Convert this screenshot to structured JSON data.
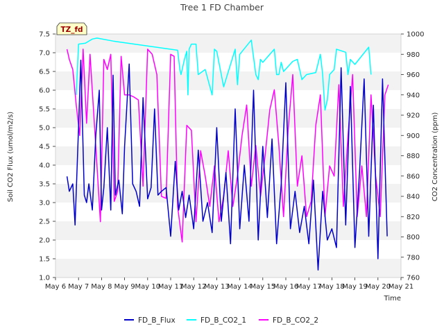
{
  "chart_data": {
    "type": "line",
    "title": "Tree 1 FD Chamber",
    "xlabel": "Time",
    "ylabel_left": "Soil CO2 Flux (umol/m2/s)",
    "ylabel_right": "CO2 Concentration (ppm)",
    "badge": "TZ_fd",
    "x_ticks": [
      "May 6",
      "May 7",
      "May 8",
      "May 9",
      "May 10",
      "May 11",
      "May 12",
      "May 13",
      "May 14",
      "May 15",
      "May 16",
      "May 17",
      "May 18",
      "May 19",
      "May 20",
      "May 21"
    ],
    "xlim": [
      6,
      21
    ],
    "ylim_left": [
      1.0,
      7.5
    ],
    "ylim_right": [
      760,
      1000
    ],
    "y_ticks_left": [
      "1.0",
      "1.5",
      "2.0",
      "2.5",
      "3.0",
      "3.5",
      "4.0",
      "4.5",
      "5.0",
      "5.5",
      "6.0",
      "6.5",
      "7.0",
      "7.5"
    ],
    "y_ticks_right": [
      "760",
      "780",
      "800",
      "820",
      "840",
      "860",
      "880",
      "900",
      "920",
      "940",
      "960",
      "980",
      "1000"
    ],
    "grid": "horizontal bands",
    "legend_position": "bottom-center",
    "series": [
      {
        "name": "FD_B_Flux",
        "axis": "left",
        "color": "#0000cc",
        "x": [
          6.5,
          6.6,
          6.75,
          6.85,
          7.0,
          7.1,
          7.25,
          7.35,
          7.45,
          7.6,
          7.75,
          7.9,
          8.0,
          8.1,
          8.25,
          8.4,
          8.5,
          8.6,
          8.75,
          8.9,
          9.0,
          9.2,
          9.35,
          9.5,
          9.65,
          9.8,
          10.0,
          10.15,
          10.3,
          10.45,
          10.6,
          10.8,
          11.0,
          11.2,
          11.35,
          11.5,
          11.65,
          11.8,
          12.0,
          12.2,
          12.4,
          12.6,
          12.8,
          13.0,
          13.2,
          13.4,
          13.6,
          13.8,
          14.0,
          14.2,
          14.4,
          14.6,
          14.8,
          15.0,
          15.2,
          15.4,
          15.6,
          15.8,
          16.0,
          16.2,
          16.4,
          16.6,
          16.8,
          17.0,
          17.2,
          17.4,
          17.6,
          17.8,
          18.0,
          18.2,
          18.4,
          18.6,
          18.8,
          19.0,
          19.2,
          19.4,
          19.6,
          19.8,
          20.0,
          20.2,
          20.4
        ],
        "values": [
          3.7,
          3.3,
          3.5,
          2.4,
          5.0,
          6.8,
          3.2,
          3.0,
          3.5,
          2.8,
          4.8,
          6.0,
          2.8,
          3.4,
          5.0,
          2.8,
          6.4,
          3.2,
          3.6,
          2.7,
          4.5,
          6.7,
          3.5,
          3.3,
          2.9,
          5.8,
          3.1,
          3.4,
          5.5,
          3.2,
          3.3,
          3.4,
          2.1,
          4.1,
          2.8,
          3.3,
          2.6,
          3.2,
          2.3,
          4.4,
          2.5,
          3.0,
          2.2,
          5.0,
          2.5,
          3.8,
          1.9,
          5.5,
          2.3,
          4.0,
          2.5,
          6.0,
          2.0,
          4.5,
          2.6,
          4.7,
          1.9,
          3.5,
          6.2,
          2.3,
          3.3,
          2.2,
          2.9,
          1.9,
          3.6,
          1.2,
          3.3,
          2.0,
          2.3,
          1.8,
          6.6,
          2.4,
          6.1,
          1.8,
          3.8,
          6.3,
          2.1,
          5.6,
          1.5,
          6.3,
          2.1
        ]
      },
      {
        "name": "FD_B_CO2_1",
        "axis": "right",
        "color": "#00ffff",
        "x": [
          6.9,
          7.0,
          7.3,
          7.6,
          7.8,
          8.5,
          11.3,
          11.4,
          11.45,
          11.6,
          11.7,
          11.75,
          11.8,
          11.9,
          12.1,
          12.2,
          12.5,
          12.8,
          12.9,
          13.0,
          13.3,
          13.6,
          13.8,
          13.9,
          14.0,
          14.5,
          14.7,
          14.8,
          14.9,
          15.0,
          15.5,
          15.6,
          15.7,
          15.8,
          15.9,
          16.3,
          16.5,
          16.7,
          16.9,
          17.3,
          17.5,
          17.6,
          17.7,
          17.8,
          17.9,
          18.1,
          18.2,
          18.6,
          18.7,
          18.8,
          19.0,
          19.6,
          19.7
        ],
        "values": [
          940,
          990,
          991,
          995,
          996,
          993,
          984,
          965,
          960,
          975,
          983,
          940,
          985,
          990,
          990,
          960,
          965,
          940,
          985,
          983,
          948,
          970,
          985,
          950,
          980,
          994,
          960,
          955,
          975,
          972,
          985,
          960,
          960,
          972,
          963,
          973,
          975,
          955,
          960,
          962,
          980,
          960,
          925,
          935,
          960,
          965,
          985,
          982,
          960,
          975,
          970,
          987,
          960
        ]
      },
      {
        "name": "FD_B_CO2_2",
        "axis": "right",
        "color": "#ff00ff",
        "x": [
          6.5,
          6.6,
          6.75,
          6.9,
          7.05,
          7.2,
          7.35,
          7.5,
          7.65,
          7.8,
          7.95,
          8.1,
          8.25,
          8.4,
          8.55,
          8.7,
          8.85,
          9.0,
          9.2,
          9.4,
          9.6,
          9.8,
          10.0,
          10.2,
          10.4,
          10.6,
          10.8,
          11.0,
          11.15,
          11.3,
          11.5,
          11.7,
          11.9,
          12.1,
          12.3,
          12.5,
          12.7,
          12.9,
          13.1,
          13.3,
          13.5,
          13.7,
          13.9,
          14.1,
          14.3,
          14.5,
          14.7,
          14.9,
          15.1,
          15.3,
          15.5,
          15.7,
          15.9,
          16.1,
          16.3,
          16.5,
          16.7,
          16.9,
          17.1,
          17.3,
          17.5,
          17.7,
          17.9,
          18.1,
          18.3,
          18.5,
          18.7,
          18.9,
          19.1,
          19.3,
          19.5,
          19.7,
          19.9,
          20.1,
          20.3,
          20.45
        ],
        "values": [
          985,
          975,
          965,
          930,
          900,
          985,
          912,
          980,
          925,
          870,
          815,
          975,
          965,
          980,
          835,
          845,
          978,
          940,
          940,
          938,
          935,
          850,
          985,
          980,
          960,
          840,
          838,
          980,
          978,
          830,
          795,
          910,
          905,
          815,
          885,
          860,
          830,
          870,
          815,
          840,
          885,
          830,
          860,
          900,
          930,
          850,
          890,
          840,
          880,
          925,
          945,
          890,
          820,
          905,
          960,
          850,
          880,
          820,
          835,
          910,
          940,
          820,
          870,
          860,
          950,
          830,
          900,
          960,
          820,
          870,
          820,
          940,
          860,
          820,
          940,
          950
        ]
      }
    ]
  }
}
